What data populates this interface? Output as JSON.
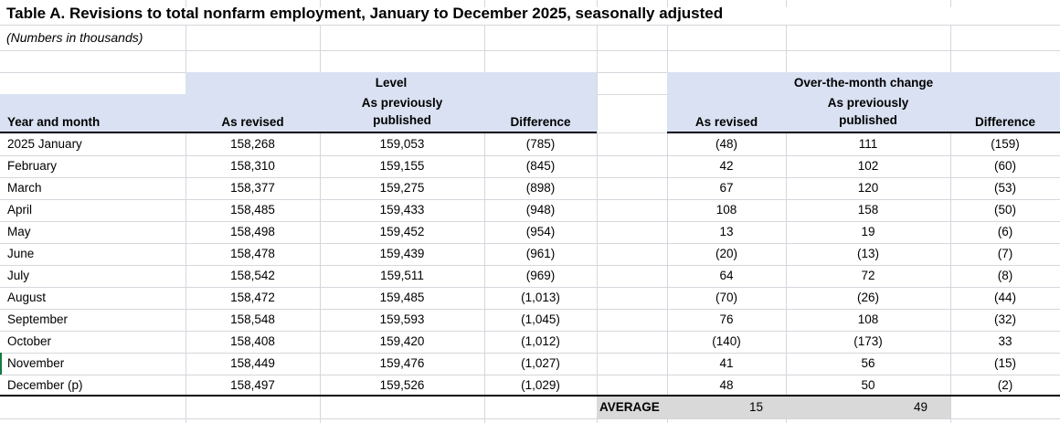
{
  "title": "Table A. Revisions to total nonfarm employment, January to December 2025, seasonally adjusted",
  "subtitle": "(Numbers in thousands)",
  "table": {
    "row_header_label": "Year and month",
    "groups": [
      {
        "label": "Level",
        "columns": [
          "As revised",
          "As previously published",
          "Difference"
        ]
      },
      {
        "label": "Over-the-month change",
        "columns": [
          "As revised",
          "As previously published",
          "Difference"
        ]
      }
    ],
    "rows": [
      {
        "month": "2025 January",
        "level": [
          "158,268",
          "159,053",
          "(785)"
        ],
        "change": [
          "(48)",
          "111",
          "(159)"
        ]
      },
      {
        "month": "February",
        "level": [
          "158,310",
          "159,155",
          "(845)"
        ],
        "change": [
          "42",
          "102",
          "(60)"
        ]
      },
      {
        "month": "March",
        "level": [
          "158,377",
          "159,275",
          "(898)"
        ],
        "change": [
          "67",
          "120",
          "(53)"
        ]
      },
      {
        "month": "April",
        "level": [
          "158,485",
          "159,433",
          "(948)"
        ],
        "change": [
          "108",
          "158",
          "(50)"
        ]
      },
      {
        "month": "May",
        "level": [
          "158,498",
          "159,452",
          "(954)"
        ],
        "change": [
          "13",
          "19",
          "(6)"
        ]
      },
      {
        "month": "June",
        "level": [
          "158,478",
          "159,439",
          "(961)"
        ],
        "change": [
          "(20)",
          "(13)",
          "(7)"
        ]
      },
      {
        "month": "July",
        "level": [
          "158,542",
          "159,511",
          "(969)"
        ],
        "change": [
          "64",
          "72",
          "(8)"
        ]
      },
      {
        "month": "August",
        "level": [
          "158,472",
          "159,485",
          "(1,013)"
        ],
        "change": [
          "(70)",
          "(26)",
          "(44)"
        ]
      },
      {
        "month": "September",
        "level": [
          "158,548",
          "159,593",
          "(1,045)"
        ],
        "change": [
          "76",
          "108",
          "(32)"
        ]
      },
      {
        "month": "October",
        "level": [
          "158,408",
          "159,420",
          "(1,012)"
        ],
        "change": [
          "(140)",
          "(173)",
          "33"
        ]
      },
      {
        "month": "November",
        "level": [
          "158,449",
          "159,476",
          "(1,027)"
        ],
        "change": [
          "41",
          "56",
          "(15)"
        ]
      },
      {
        "month": "December (p)",
        "level": [
          "158,497",
          "159,526",
          "(1,029)"
        ],
        "change": [
          "48",
          "50",
          "(2)"
        ]
      }
    ],
    "average": {
      "label": "AVERAGE",
      "values": [
        "15",
        "49"
      ]
    }
  },
  "colors": {
    "header_bg": "#D9E1F2",
    "average_bg": "#D9D9D9",
    "selection_border": "#107C41"
  }
}
